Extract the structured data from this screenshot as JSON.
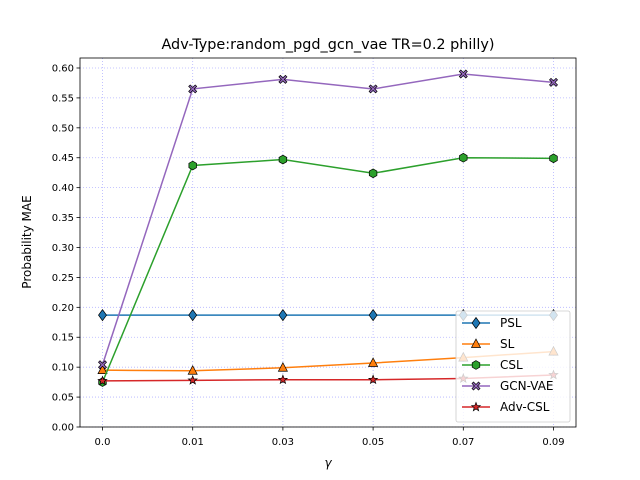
{
  "chart_data": {
    "type": "line",
    "title": "Adv-Type:random_pgd_gcn_vae TR=0.2 philly)",
    "xlabel": "γ",
    "ylabel": "Probability MAE",
    "x": [
      "0.0",
      "0.01",
      "0.03",
      "0.05",
      "0.07",
      "0.09"
    ],
    "ylim": [
      0.0,
      0.6167
    ],
    "yticks": [
      "0.00",
      "0.05",
      "0.10",
      "0.15",
      "0.20",
      "0.25",
      "0.30",
      "0.35",
      "0.40",
      "0.45",
      "0.50",
      "0.55",
      "0.60"
    ],
    "grid": true,
    "legend_position": "lower-right",
    "series": [
      {
        "name": "PSL",
        "color": "#1f77b4",
        "marker": "diamond",
        "values": [
          0.187,
          0.187,
          0.187,
          0.187,
          0.187,
          0.187
        ]
      },
      {
        "name": "SL",
        "color": "#ff7f0e",
        "marker": "triangle",
        "values": [
          0.095,
          0.094,
          0.099,
          0.107,
          0.116,
          0.126
        ]
      },
      {
        "name": "CSL",
        "color": "#2ca02c",
        "marker": "hexagon",
        "values": [
          0.075,
          0.437,
          0.447,
          0.424,
          0.45,
          0.449
        ]
      },
      {
        "name": "GCN-VAE",
        "color": "#9467bd",
        "marker": "x",
        "values": [
          0.104,
          0.565,
          0.581,
          0.565,
          0.59,
          0.576
        ]
      },
      {
        "name": "Adv-CSL",
        "color": "#d62728",
        "marker": "star",
        "values": [
          0.077,
          0.078,
          0.079,
          0.079,
          0.081,
          0.087
        ]
      }
    ]
  }
}
